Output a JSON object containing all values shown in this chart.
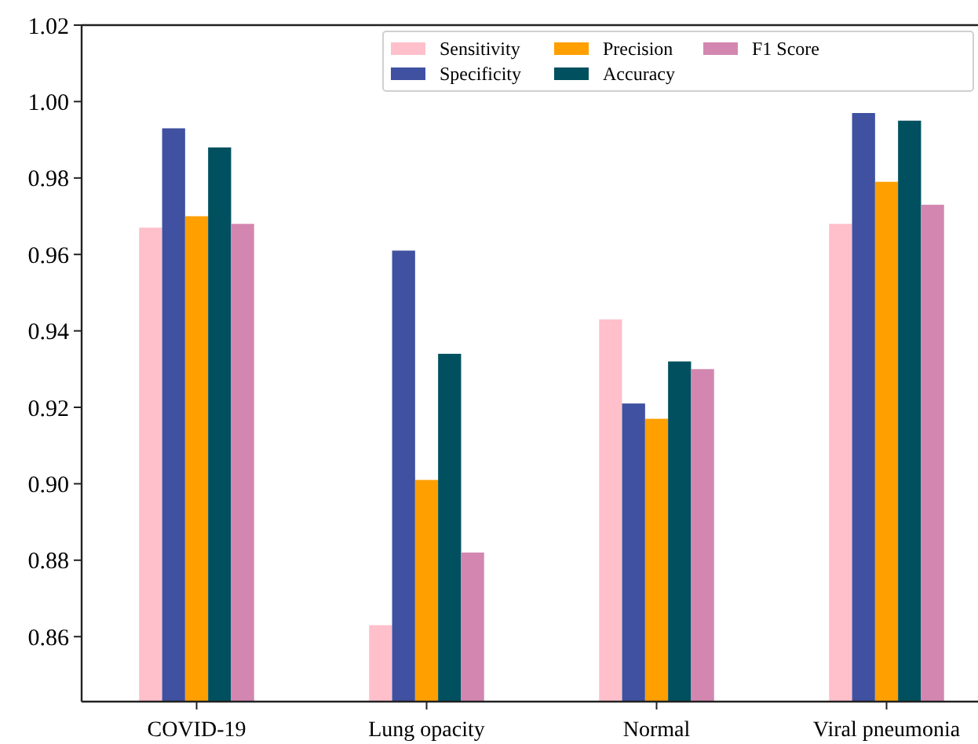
{
  "chart_data": {
    "type": "bar",
    "categories": [
      "COVID-19",
      "Lung opacity",
      "Normal",
      "Viral pneumonia"
    ],
    "series": [
      {
        "name": "Sensitivity",
        "color": "#ffc0cb",
        "values": [
          0.967,
          0.863,
          0.943,
          0.968
        ]
      },
      {
        "name": "Specificity",
        "color": "#3f51a0",
        "values": [
          0.993,
          0.961,
          0.921,
          0.997
        ]
      },
      {
        "name": "Precision",
        "color": "#ff9f00",
        "values": [
          0.97,
          0.901,
          0.917,
          0.979
        ]
      },
      {
        "name": "Accuracy",
        "color": "#00505f",
        "values": [
          0.988,
          0.934,
          0.932,
          0.995
        ]
      },
      {
        "name": "F1 Score",
        "color": "#d387b0",
        "values": [
          0.968,
          0.882,
          0.93,
          0.973
        ]
      }
    ],
    "ylim": [
      0.843,
      1.02
    ],
    "yticks": [
      {
        "value": 0.86,
        "label": "0.86"
      },
      {
        "value": 0.88,
        "label": "0.88"
      },
      {
        "value": 0.9,
        "label": "0.90"
      },
      {
        "value": 0.92,
        "label": "0.92"
      },
      {
        "value": 0.94,
        "label": "0.94"
      },
      {
        "value": 0.96,
        "label": "0.96"
      },
      {
        "value": 0.98,
        "label": "0.98"
      },
      {
        "value": 1.0,
        "label": "1.00"
      },
      {
        "value": 1.02,
        "label": "1.02"
      }
    ],
    "grid": false,
    "legend": "top right"
  }
}
